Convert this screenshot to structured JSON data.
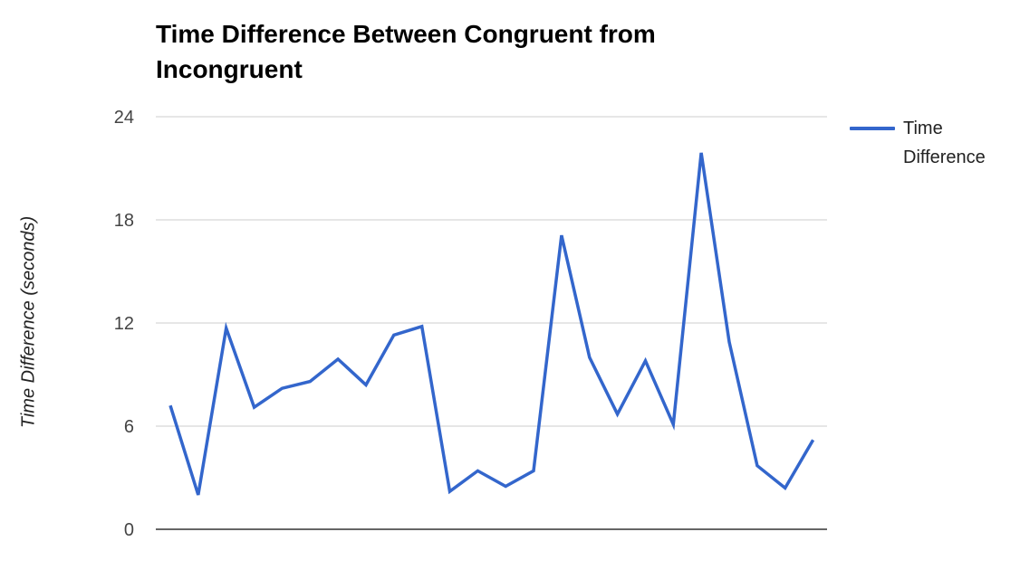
{
  "chart_data": {
    "type": "line",
    "title": "Time Difference Between Congruent from Incongruent",
    "xlabel": "",
    "ylabel": "Time Difference (seconds)",
    "ylim": [
      0,
      24
    ],
    "yticks": [
      0,
      6,
      12,
      18,
      24
    ],
    "grid": true,
    "legend_position": "right",
    "x": [
      1,
      2,
      3,
      4,
      5,
      6,
      7,
      8,
      9,
      10,
      11,
      12,
      13,
      14,
      15,
      16,
      17,
      18,
      19,
      20,
      21,
      22,
      23,
      24
    ],
    "series": [
      {
        "name": "Time Difference",
        "color": "#3366cc",
        "values": [
          7.2,
          2.0,
          11.7,
          7.1,
          8.2,
          8.6,
          9.9,
          8.4,
          11.3,
          11.8,
          2.2,
          3.4,
          2.5,
          3.4,
          17.1,
          10.0,
          6.7,
          9.8,
          6.1,
          21.9,
          10.9,
          3.7,
          2.4,
          5.2
        ]
      }
    ]
  }
}
